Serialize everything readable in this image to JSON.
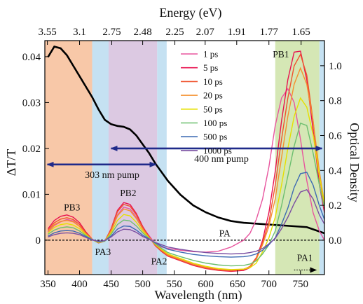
{
  "chart_data": {
    "type": "line",
    "xlabel": "Wavelength (nm)",
    "ylabel": "ΔT/T",
    "y2label": "Optical Density",
    "top_axis_label": "Energy (eV)",
    "xlim": [
      345,
      788
    ],
    "ylim": [
      -0.0075,
      0.0435
    ],
    "y2lim": [
      -0.197,
      1.144
    ],
    "x_ticks": [
      350,
      400,
      450,
      500,
      550,
      600,
      650,
      700,
      750
    ],
    "y_ticks": [
      0,
      0.01,
      0.02,
      0.03,
      0.04
    ],
    "y_tick_labels": [
      "0",
      "0.01",
      "0.02",
      "0.03",
      "0.04"
    ],
    "y2_ticks": [
      0.0,
      0.2,
      0.4,
      0.6,
      0.8,
      1.0
    ],
    "y2_tick_labels": [
      "0.0",
      "0.2",
      "0.4",
      "0.6",
      "0.8",
      "1.0"
    ],
    "top_ticks": [
      {
        "label": "3.55",
        "wavelength": 349
      },
      {
        "label": "3.1",
        "wavelength": 400
      },
      {
        "label": "2.75",
        "wavelength": 451
      },
      {
        "label": "2.48",
        "wavelength": 500
      },
      {
        "label": "2.25",
        "wavelength": 551
      },
      {
        "label": "2.07",
        "wavelength": 599
      },
      {
        "label": "1.91",
        "wavelength": 649
      },
      {
        "label": "1.77",
        "wavelength": 700
      },
      {
        "label": "1.65",
        "wavelength": 751
      }
    ],
    "regions": [
      {
        "from": 345,
        "to": 420,
        "color": "#f8c8a8"
      },
      {
        "from": 420,
        "to": 446,
        "color": "#c5e1f2"
      },
      {
        "from": 446,
        "to": 523,
        "color": "#dcc9e2"
      },
      {
        "from": 523,
        "to": 538,
        "color": "#c5e1f2"
      },
      {
        "from": 710,
        "to": 780,
        "color": "#d5e7b5"
      },
      {
        "from": 780,
        "to": 788,
        "color": "#c5e1f2"
      }
    ],
    "absorbance": {
      "x": [
        350,
        360,
        370,
        380,
        390,
        400,
        410,
        420,
        430,
        440,
        450,
        460,
        470,
        480,
        490,
        500,
        510,
        520,
        540,
        560,
        580,
        600,
        620,
        640,
        660,
        680,
        700,
        720,
        740,
        760,
        780,
        788
      ],
      "y": [
        1.05,
        1.11,
        1.1,
        1.06,
        1.0,
        0.94,
        0.88,
        0.82,
        0.75,
        0.69,
        0.665,
        0.655,
        0.65,
        0.635,
        0.6,
        0.55,
        0.5,
        0.44,
        0.34,
        0.26,
        0.2,
        0.16,
        0.13,
        0.11,
        0.1,
        0.095,
        0.09,
        0.085,
        0.08,
        0.075,
        0.05,
        0.04
      ]
    },
    "x_common": [
      350,
      360,
      370,
      380,
      390,
      400,
      410,
      420,
      430,
      440,
      450,
      460,
      470,
      480,
      490,
      500,
      510,
      520,
      530,
      540,
      560,
      580,
      600,
      620,
      640,
      660,
      670,
      680,
      690,
      700,
      710,
      720,
      730,
      740,
      750,
      760,
      770,
      780,
      788
    ],
    "series": [
      {
        "name": "1 ps",
        "color": "#e8559e",
        "values": [
          0.0018,
          0.0032,
          0.004,
          0.0045,
          0.0042,
          0.003,
          0.0015,
          0.0002,
          -0.0005,
          -0.0002,
          0.002,
          0.0055,
          0.0072,
          0.0068,
          0.005,
          0.0028,
          0.001,
          -0.0008,
          -0.0015,
          -0.0018,
          -0.0022,
          -0.0025,
          -0.0026,
          -0.0024,
          -0.0015,
          0.0,
          0.0015,
          0.0045,
          0.009,
          0.016,
          0.025,
          0.031,
          0.033,
          0.03,
          0.022,
          0.013,
          0.006,
          0.002,
          0.0
        ]
      },
      {
        "name": "5 ps",
        "color": "#e8124f",
        "values": [
          0.0025,
          0.0043,
          0.0052,
          0.0055,
          0.005,
          0.0038,
          0.0018,
          0.0002,
          -0.0006,
          -0.0002,
          0.0025,
          0.0065,
          0.0082,
          0.0078,
          0.0058,
          0.003,
          0.0008,
          -0.0012,
          -0.0025,
          -0.0035,
          -0.0045,
          -0.0055,
          -0.0062,
          -0.0066,
          -0.0068,
          -0.0066,
          -0.006,
          -0.004,
          0.0,
          0.006,
          0.015,
          0.026,
          0.035,
          0.041,
          0.0412,
          0.035,
          0.024,
          0.012,
          0.006
        ]
      },
      {
        "name": "10 ps",
        "color": "#f0522d",
        "values": [
          0.0022,
          0.0038,
          0.0046,
          0.0049,
          0.0045,
          0.0034,
          0.0016,
          0.0001,
          -0.0006,
          -0.0002,
          0.0024,
          0.0062,
          0.0078,
          0.0074,
          0.0055,
          0.0028,
          0.0007,
          -0.0012,
          -0.0024,
          -0.0034,
          -0.0044,
          -0.0054,
          -0.0061,
          -0.0065,
          -0.0067,
          -0.0064,
          -0.0057,
          -0.0038,
          -0.0005,
          0.004,
          0.012,
          0.022,
          0.031,
          0.038,
          0.0405,
          0.036,
          0.026,
          0.014,
          0.007
        ]
      },
      {
        "name": "20 ps",
        "color": "#f5902e",
        "values": [
          0.002,
          0.0034,
          0.0041,
          0.0043,
          0.004,
          0.003,
          0.0014,
          0.0001,
          -0.0005,
          -0.0002,
          0.002,
          0.0053,
          0.0068,
          0.0064,
          0.0047,
          0.0024,
          0.0006,
          -0.001,
          -0.0022,
          -0.0032,
          -0.0042,
          -0.0052,
          -0.0059,
          -0.0063,
          -0.0065,
          -0.0063,
          -0.0058,
          -0.0042,
          -0.001,
          0.003,
          0.009,
          0.018,
          0.027,
          0.034,
          0.0375,
          0.034,
          0.026,
          0.015,
          0.008
        ]
      },
      {
        "name": "50 ps",
        "color": "#e6e000",
        "values": [
          0.0016,
          0.0028,
          0.0034,
          0.0036,
          0.0033,
          0.0025,
          0.0012,
          0.0001,
          -0.0005,
          -0.0002,
          0.0016,
          0.0043,
          0.0056,
          0.0053,
          0.0039,
          0.002,
          0.0005,
          -0.0009,
          -0.002,
          -0.003,
          -0.004,
          -0.005,
          -0.0057,
          -0.0062,
          -0.0064,
          -0.0063,
          -0.006,
          -0.005,
          -0.0025,
          0.0005,
          0.005,
          0.012,
          0.02,
          0.027,
          0.031,
          0.029,
          0.023,
          0.014,
          0.008
        ]
      },
      {
        "name": "100 ps",
        "color": "#6cbf6f",
        "values": [
          0.0013,
          0.0022,
          0.0027,
          0.0029,
          0.0027,
          0.002,
          0.001,
          0.0001,
          -0.0004,
          -0.0002,
          0.0013,
          0.0034,
          0.0044,
          0.0042,
          0.0031,
          0.0016,
          0.0004,
          -0.0008,
          -0.0018,
          -0.0027,
          -0.0036,
          -0.0044,
          -0.005,
          -0.0054,
          -0.0056,
          -0.0055,
          -0.0052,
          -0.0045,
          -0.003,
          -0.001,
          0.002,
          0.0075,
          0.014,
          0.0205,
          0.0255,
          0.025,
          0.019,
          0.012,
          0.007
        ]
      },
      {
        "name": "500 ps",
        "color": "#3d6bb3",
        "values": [
          0.0009,
          0.0016,
          0.002,
          0.0021,
          0.002,
          0.0015,
          0.0008,
          0.0001,
          -0.0003,
          -0.0001,
          0.0009,
          0.0024,
          0.0031,
          0.003,
          0.0022,
          0.0011,
          0.0003,
          -0.0006,
          -0.0013,
          -0.002,
          -0.0026,
          -0.0031,
          -0.0034,
          -0.0036,
          -0.0037,
          -0.0036,
          -0.0034,
          -0.003,
          -0.0022,
          -0.001,
          0.0005,
          0.0035,
          0.007,
          0.0115,
          0.0145,
          0.0148,
          0.012,
          0.0075,
          0.0045
        ]
      },
      {
        "name": "1000 ps",
        "color": "#7a4fa2",
        "values": [
          0.0007,
          0.0012,
          0.0015,
          0.0016,
          0.0015,
          0.0012,
          0.0006,
          0.0,
          -0.0002,
          -0.0001,
          0.0007,
          0.0018,
          0.0024,
          0.0023,
          0.0017,
          0.0008,
          0.0002,
          -0.0005,
          -0.001,
          -0.0015,
          -0.002,
          -0.0024,
          -0.0027,
          -0.0029,
          -0.003,
          -0.0029,
          -0.0027,
          -0.0024,
          -0.0018,
          -0.0008,
          0.0004,
          0.0025,
          0.005,
          0.008,
          0.0105,
          0.011,
          0.009,
          0.0055,
          0.0035
        ]
      }
    ],
    "pump_arrows": [
      {
        "label": "303 nm pump",
        "from": 349,
        "to": 521,
        "y": 0.0165
      },
      {
        "label": "400 nm pump",
        "from": 450,
        "to": 784,
        "y": 0.02
      }
    ],
    "annotations": [
      {
        "text": "PB1",
        "x": 719,
        "y": 0.0398
      },
      {
        "text": "PB2",
        "x": 477,
        "y": 0.0096
      },
      {
        "text": "PB3",
        "x": 388,
        "y": 0.0065
      },
      {
        "text": "PA",
        "x": 630,
        "y": 0.0008
      },
      {
        "text": "PA3",
        "x": 437,
        "y": -0.0032
      },
      {
        "text": "PA2",
        "x": 526,
        "y": -0.0053
      },
      {
        "text": "PA1",
        "x": 757,
        "y": -0.0045
      }
    ],
    "pa1_arrow": {
      "from": 740,
      "to": 775,
      "y": -0.0065
    }
  }
}
